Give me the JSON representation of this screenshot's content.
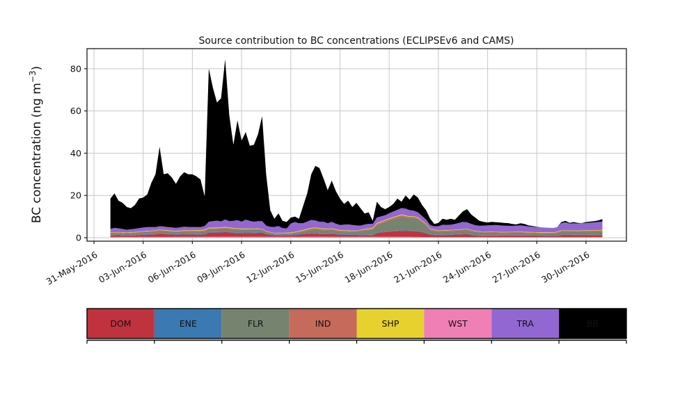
{
  "title": "Source contribution to BC concentrations (ECLIPSEv6 and CAMS)",
  "axes": {
    "ylabel": {
      "pre": "BC concentration (ng m",
      "sup": "−3",
      "post": ")"
    },
    "yticks": [
      0,
      20,
      40,
      60,
      80
    ],
    "xtick_days": [
      0,
      3,
      6,
      9,
      12,
      15,
      18,
      21,
      24,
      27,
      30
    ],
    "xtick_labels": [
      "31-May-2016",
      "03-Jun-2016",
      "06-Jun-2016",
      "09-Jun-2016",
      "12-Jun-2016",
      "15-Jun-2016",
      "18-Jun-2016",
      "21-Jun-2016",
      "24-Jun-2016",
      "27-Jun-2016",
      "30-Jun-2016"
    ]
  },
  "legend": {
    "items": [
      {
        "label": "DOM",
        "color": "#c0333e",
        "text_color": "#111111"
      },
      {
        "label": "ENE",
        "color": "#3a79b1",
        "text_color": "#111111"
      },
      {
        "label": "FLR",
        "color": "#76836f",
        "text_color": "#111111"
      },
      {
        "label": "IND",
        "color": "#c66a5c",
        "text_color": "#111111"
      },
      {
        "label": "SHP",
        "color": "#e6d12f",
        "text_color": "#111111"
      },
      {
        "label": "WST",
        "color": "#f07fb6",
        "text_color": "#111111"
      },
      {
        "label": "TRA",
        "color": "#9267d2",
        "text_color": "#111111"
      },
      {
        "label": "BB",
        "color": "#000000",
        "text_color": "#ffffff"
      }
    ]
  },
  "chart_data": {
    "type": "area",
    "title": "Source contribution to BC concentrations (ECLIPSEv6 and CAMS)",
    "xlabel": "",
    "ylabel": "BC concentration (ng m⁻³)",
    "ylim": [
      -1.64,
      89.5
    ],
    "grid": true,
    "x_unit": "days after 31-May-2016 00:00",
    "x": {
      "start_day": 1.0,
      "step_days": 0.25,
      "count": 121
    },
    "stack_order": [
      "WST",
      "DOM",
      "ENE",
      "FLR",
      "IND",
      "SHP",
      "TRA",
      "BB"
    ],
    "total": [
      18.5,
      21,
      17.5,
      16.5,
      14.5,
      14,
      15.5,
      18.5,
      19,
      20.5,
      26,
      30,
      43,
      30,
      30.5,
      28.5,
      25.5,
      29,
      31,
      30,
      30,
      29,
      27.5,
      19.5,
      80,
      71,
      64,
      66,
      84.5,
      58,
      44,
      55.5,
      46,
      50,
      43.5,
      44,
      49,
      57.5,
      30,
      13,
      9,
      11.5,
      8,
      7.5,
      9.5,
      10,
      9,
      15,
      21,
      30,
      34,
      33,
      28,
      22.5,
      27,
      22,
      18.5,
      16,
      17.5,
      14.5,
      16.5,
      14,
      11.5,
      12,
      8,
      17,
      14.5,
      13.5,
      14.5,
      16,
      18.5,
      17,
      20,
      18,
      20.5,
      19,
      15.5,
      13,
      9,
      6.5,
      7,
      9,
      8.5,
      9,
      8.5,
      10.5,
      12.5,
      13.5,
      11,
      9.5,
      8,
      7.5,
      7.2,
      7.5,
      7.3,
      7.2,
      7,
      6.9,
      6.5,
      6.3,
      6.8,
      6.5,
      5.8,
      5.5,
      5.2,
      4.8,
      4.6,
      4.3,
      4.2,
      4.3,
      7.4,
      8,
      7,
      7.4,
      7,
      6.9,
      7.4,
      7.6,
      7.8,
      8.2,
      8.8
    ],
    "components": {
      "WST": [
        [
          1,
          0.35
        ],
        [
          7,
          0.4
        ],
        [
          8,
          0.5
        ],
        [
          9.5,
          0.4
        ],
        [
          12.5,
          0.4
        ],
        [
          13,
          0.5
        ],
        [
          15,
          0.4
        ],
        [
          18,
          0.45
        ],
        [
          20,
          0.35
        ],
        [
          31,
          0.35
        ]
      ],
      "DOM": [
        [
          1,
          0.7
        ],
        [
          1.5,
          0.8
        ],
        [
          2,
          0.6
        ],
        [
          2.5,
          0.7
        ],
        [
          3,
          1
        ],
        [
          3.75,
          1.2
        ],
        [
          4,
          1.5
        ],
        [
          4.5,
          1.2
        ],
        [
          5,
          1
        ],
        [
          5.5,
          1.2
        ],
        [
          6,
          1.1
        ],
        [
          6.5,
          1
        ],
        [
          6.75,
          1.2
        ],
        [
          7,
          2
        ],
        [
          7.75,
          2
        ],
        [
          8,
          2.2
        ],
        [
          8.5,
          1.8
        ],
        [
          9,
          1.8
        ],
        [
          9.5,
          1.8
        ],
        [
          10,
          1.9
        ],
        [
          10.25,
          2
        ],
        [
          10.5,
          1.2
        ],
        [
          11,
          0.7
        ],
        [
          11.75,
          0.6
        ],
        [
          12.25,
          0.8
        ],
        [
          12.75,
          1.2
        ],
        [
          13.25,
          1.5
        ],
        [
          13.75,
          1.3
        ],
        [
          14.25,
          1.2
        ],
        [
          14.5,
          1.4
        ],
        [
          15,
          1
        ],
        [
          16,
          0.9
        ],
        [
          16.75,
          0.7
        ],
        [
          17,
          0.7
        ],
        [
          17.25,
          1.8
        ],
        [
          18,
          2.4
        ],
        [
          18.75,
          2.8
        ],
        [
          19.25,
          2.7
        ],
        [
          19.75,
          2.6
        ],
        [
          20.25,
          1.8
        ],
        [
          20.5,
          1
        ],
        [
          21,
          0.8
        ],
        [
          21.5,
          0.9
        ],
        [
          22.25,
          1.2
        ],
        [
          22.75,
          1.3
        ],
        [
          23.25,
          0.6
        ],
        [
          24,
          0.5
        ],
        [
          28.25,
          0.45
        ],
        [
          28.5,
          0.8
        ],
        [
          31,
          0.9
        ]
      ],
      "ENE": [
        [
          1,
          0.2
        ],
        [
          6,
          0.25
        ],
        [
          8,
          0.3
        ],
        [
          10,
          0.25
        ],
        [
          13,
          0.3
        ],
        [
          17,
          0.25
        ],
        [
          19,
          0.3
        ],
        [
          21,
          0.2
        ],
        [
          31,
          0.2
        ]
      ],
      "FLR": [
        [
          1,
          0.9
        ],
        [
          2,
          0.8
        ],
        [
          3,
          1
        ],
        [
          4,
          1.2
        ],
        [
          5,
          1
        ],
        [
          6,
          1.1
        ],
        [
          7,
          1.3
        ],
        [
          8,
          1.4
        ],
        [
          9,
          1.2
        ],
        [
          10,
          1.3
        ],
        [
          10.5,
          0.8
        ],
        [
          11,
          0.5
        ],
        [
          12,
          0.6
        ],
        [
          12.75,
          1
        ],
        [
          13.5,
          1.8
        ],
        [
          14,
          1.5
        ],
        [
          14.5,
          1.6
        ],
        [
          15,
          1.3
        ],
        [
          16,
          1.2
        ],
        [
          16.5,
          2
        ],
        [
          17,
          2.5
        ],
        [
          17.25,
          3.5
        ],
        [
          17.75,
          4.5
        ],
        [
          18.25,
          5.5
        ],
        [
          18.75,
          6.5
        ],
        [
          19.25,
          5.8
        ],
        [
          19.5,
          6
        ],
        [
          19.75,
          5.5
        ],
        [
          20,
          4.5
        ],
        [
          20.25,
          3.5
        ],
        [
          20.5,
          2
        ],
        [
          21,
          1.5
        ],
        [
          22,
          1.6
        ],
        [
          22.75,
          1.8
        ],
        [
          23.5,
          1.4
        ],
        [
          24,
          1.3
        ],
        [
          25,
          1.2
        ],
        [
          26,
          1.3
        ],
        [
          27,
          1.1
        ],
        [
          28,
          1
        ],
        [
          28.5,
          1.5
        ],
        [
          29.5,
          1.4
        ],
        [
          30,
          1.5
        ],
        [
          31,
          1.6
        ]
      ],
      "IND": [
        [
          1,
          0.3
        ],
        [
          3,
          0.35
        ],
        [
          5,
          0.4
        ],
        [
          7,
          0.5
        ],
        [
          9,
          0.45
        ],
        [
          10.5,
          0.3
        ],
        [
          12,
          0.3
        ],
        [
          13,
          0.5
        ],
        [
          14,
          0.6
        ],
        [
          15,
          0.4
        ],
        [
          16.5,
          0.4
        ],
        [
          17.25,
          0.6
        ],
        [
          18,
          0.7
        ],
        [
          19,
          0.7
        ],
        [
          20,
          0.6
        ],
        [
          20.5,
          0.4
        ],
        [
          22,
          0.4
        ],
        [
          24,
          0.35
        ],
        [
          26,
          0.35
        ],
        [
          28,
          0.3
        ],
        [
          28.5,
          0.45
        ],
        [
          31,
          0.45
        ]
      ],
      "SHP": [
        [
          1,
          0.15
        ],
        [
          4,
          0.2
        ],
        [
          7,
          0.3
        ],
        [
          9,
          0.25
        ],
        [
          11,
          0.15
        ],
        [
          13,
          0.3
        ],
        [
          14.5,
          0.25
        ],
        [
          16,
          0.2
        ],
        [
          17.25,
          0.35
        ],
        [
          19,
          0.3
        ],
        [
          20.5,
          0.2
        ],
        [
          24,
          0.15
        ],
        [
          28.5,
          0.2
        ],
        [
          31,
          0.2
        ]
      ],
      "TRA": [
        [
          1,
          1.6
        ],
        [
          1.25,
          2
        ],
        [
          2,
          1.3
        ],
        [
          2.75,
          1.6
        ],
        [
          3.25,
          1.8
        ],
        [
          3.75,
          1.5
        ],
        [
          4.25,
          1.6
        ],
        [
          5,
          1.4
        ],
        [
          5.5,
          1.6
        ],
        [
          6,
          1.5
        ],
        [
          6.5,
          1.4
        ],
        [
          6.75,
          1.6
        ],
        [
          7,
          2.8
        ],
        [
          7.5,
          3.2
        ],
        [
          7.75,
          2.8
        ],
        [
          8,
          3.5
        ],
        [
          8.25,
          3
        ],
        [
          8.5,
          3.4
        ],
        [
          8.75,
          3.8
        ],
        [
          9,
          3.2
        ],
        [
          9.25,
          4.2
        ],
        [
          9.5,
          3.6
        ],
        [
          9.75,
          3.2
        ],
        [
          10,
          3.4
        ],
        [
          10.25,
          3.6
        ],
        [
          10.5,
          2.6
        ],
        [
          10.75,
          2.4
        ],
        [
          11,
          2.8
        ],
        [
          11.25,
          3.2
        ],
        [
          11.5,
          2.2
        ],
        [
          11.75,
          2
        ],
        [
          12,
          4.2
        ],
        [
          12.25,
          4.6
        ],
        [
          12.5,
          3.6
        ],
        [
          12.75,
          3.2
        ],
        [
          13,
          3.4
        ],
        [
          13.25,
          3.8
        ],
        [
          13.5,
          3.4
        ],
        [
          13.75,
          3
        ],
        [
          14,
          3.2
        ],
        [
          14.25,
          2.6
        ],
        [
          14.5,
          3
        ],
        [
          14.75,
          2.6
        ],
        [
          15,
          2.4
        ],
        [
          15.5,
          2.8
        ],
        [
          16,
          2.4
        ],
        [
          16.25,
          2
        ],
        [
          16.75,
          2.2
        ],
        [
          17,
          1.8
        ],
        [
          17.25,
          2.6
        ],
        [
          17.75,
          2.2
        ],
        [
          18,
          2.4
        ],
        [
          18.5,
          2.8
        ],
        [
          19,
          3.2
        ],
        [
          19.5,
          2.6
        ],
        [
          19.75,
          2.4
        ],
        [
          20,
          2.2
        ],
        [
          20.5,
          1.8
        ],
        [
          20.75,
          1.6
        ],
        [
          21,
          2
        ],
        [
          21.25,
          2.6
        ],
        [
          21.75,
          2.4
        ],
        [
          22.25,
          3
        ],
        [
          22.5,
          3.4
        ],
        [
          23,
          2.8
        ],
        [
          23.5,
          2.6
        ],
        [
          24,
          3
        ],
        [
          24.5,
          3.2
        ],
        [
          25,
          2.9
        ],
        [
          25.5,
          2.8
        ],
        [
          26,
          3
        ],
        [
          26.5,
          2.6
        ],
        [
          27,
          2.4
        ],
        [
          27.5,
          2.2
        ],
        [
          28,
          2.1
        ],
        [
          28.25,
          2.2
        ],
        [
          28.5,
          3.4
        ],
        [
          28.75,
          3.8
        ],
        [
          29,
          3.2
        ],
        [
          29.25,
          3.4
        ],
        [
          29.5,
          3.3
        ],
        [
          30,
          3.4
        ],
        [
          30.5,
          3.6
        ],
        [
          31,
          4
        ]
      ]
    }
  }
}
